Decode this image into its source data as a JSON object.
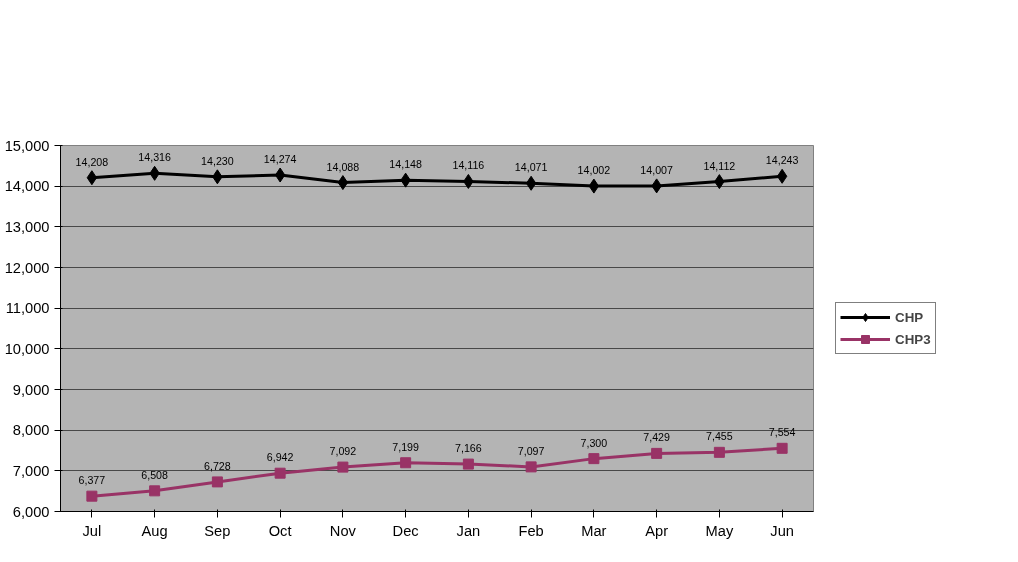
{
  "chart_data": {
    "type": "line",
    "categories": [
      "Jul",
      "Aug",
      "Sep",
      "Oct",
      "Nov",
      "Dec",
      "Jan",
      "Feb",
      "Mar",
      "Apr",
      "May",
      "Jun"
    ],
    "series": [
      {
        "name": "CHP",
        "color": "#000000",
        "marker": "diamond",
        "values": [
          14208,
          14316,
          14230,
          14274,
          14088,
          14148,
          14116,
          14071,
          14002,
          14007,
          14112,
          14243
        ],
        "value_labels": [
          "14,208",
          "14,316",
          "14,230",
          "14,274",
          "14,088",
          "14,148",
          "14,116",
          "14,071",
          "14,002",
          "14,007",
          "14,112",
          "14,243"
        ]
      },
      {
        "name": "CHP3",
        "color": "#993366",
        "marker": "square",
        "values": [
          6377,
          6508,
          6728,
          6942,
          7092,
          7199,
          7166,
          7097,
          7300,
          7429,
          7455,
          7554
        ],
        "value_labels": [
          "6,377",
          "6,508",
          "6,728",
          "6,942",
          "7,092",
          "7,199",
          "7,166",
          "7,097",
          "7,300",
          "7,429",
          "7,455",
          "7,554"
        ]
      }
    ],
    "ylim": [
      6000,
      15000
    ],
    "yticks": [
      {
        "value": 6000,
        "label": "6,000"
      },
      {
        "value": 7000,
        "label": "7,000"
      },
      {
        "value": 8000,
        "label": "8,000"
      },
      {
        "value": 9000,
        "label": "9,000"
      },
      {
        "value": 10000,
        "label": "10,000"
      },
      {
        "value": 11000,
        "label": "11,000"
      },
      {
        "value": 12000,
        "label": "12,000"
      },
      {
        "value": 13000,
        "label": "13,000"
      },
      {
        "value": 14000,
        "label": "14,000"
      },
      {
        "value": 15000,
        "label": "15,000"
      }
    ],
    "grid": "y",
    "legend": "right",
    "line_style": "solid"
  }
}
